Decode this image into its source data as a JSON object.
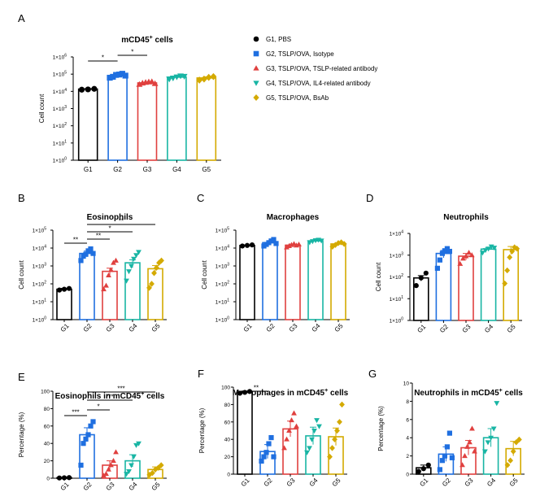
{
  "groups": [
    {
      "label": "G1",
      "legend": "G1, PBS",
      "color": "#000000",
      "marker": "circle"
    },
    {
      "label": "G2",
      "legend": "G2, TSLP/OVA, Isotype",
      "color": "#1f6fe0",
      "marker": "square"
    },
    {
      "label": "G3",
      "legend": "G3, TSLP/OVA, TSLP-related antibody",
      "color": "#e0403f",
      "marker": "triangle"
    },
    {
      "label": "G4",
      "legend": "G4, TSLP/OVA, IL4-related antibody",
      "color": "#18b5a4",
      "marker": "triangle-down"
    },
    {
      "label": "G5",
      "legend": "G5, TSLP/OVA, BsAb",
      "color": "#d4aa00",
      "marker": "diamond"
    }
  ],
  "chart_data": [
    {
      "id": "A",
      "panel_label": "A",
      "type": "bar",
      "scale": "log",
      "title": "mCD45",
      "title_sup": "+",
      "title_suffix": " cells",
      "ylabel": "Cell count",
      "ylim": [
        1,
        1000000
      ],
      "yticks": [
        [
          "1×10",
          "0"
        ],
        [
          "1×10",
          "1"
        ],
        [
          "1×10",
          "2"
        ],
        [
          "1×10",
          "3"
        ],
        [
          "1×10",
          "4"
        ],
        [
          "1×10",
          "5"
        ],
        [
          "1×10",
          "6"
        ]
      ],
      "categories": [
        "G1",
        "G2",
        "G3",
        "G4",
        "G5"
      ],
      "values": [
        13500,
        82000,
        31000,
        67000,
        60000
      ],
      "errors": [
        1000,
        9000,
        3500,
        9000,
        10000
      ],
      "points": [
        [
          12500,
          13000,
          14000
        ],
        [
          62000,
          70000,
          90000,
          95000,
          105000,
          82000
        ],
        [
          25000,
          30000,
          33000,
          35000,
          36000,
          28000
        ],
        [
          52000,
          60000,
          70000,
          80000,
          75000
        ],
        [
          45000,
          52000,
          65000,
          72000
        ]
      ],
      "significance": [
        {
          "from": 0,
          "to": 1,
          "label": "*"
        },
        {
          "from": 1,
          "to": 2,
          "label": "*"
        }
      ]
    },
    {
      "id": "B",
      "panel_label": "B",
      "type": "bar",
      "scale": "log",
      "title": "Eosinophils",
      "title_sup": "",
      "title_suffix": "",
      "ylabel": "Cell count",
      "ylim": [
        1,
        100000
      ],
      "yticks": [
        [
          "1×10",
          "0"
        ],
        [
          "1×10",
          "1"
        ],
        [
          "1×10",
          "2"
        ],
        [
          "1×10",
          "3"
        ],
        [
          "1×10",
          "4"
        ],
        [
          "1×10",
          "5"
        ]
      ],
      "categories": [
        "G1",
        "G2",
        "G3",
        "G4",
        "G5"
      ],
      "values": [
        50,
        5000,
        500,
        1500,
        700
      ],
      "errors": [
        6,
        1800,
        250,
        700,
        350
      ],
      "points": [
        [
          45,
          50,
          55
        ],
        [
          2000,
          3500,
          4500,
          7000,
          9000,
          5000
        ],
        [
          50,
          80,
          300,
          600,
          1500,
          2000
        ],
        [
          150,
          500,
          1000,
          2500,
          4000,
          6000
        ],
        [
          60,
          100,
          400,
          800,
          1500,
          2000
        ]
      ],
      "significance": [
        {
          "from": 0,
          "to": 1,
          "label": "**"
        },
        {
          "from": 1,
          "to": 2,
          "label": "**"
        },
        {
          "from": 1,
          "to": 3,
          "label": "*"
        },
        {
          "from": 1,
          "to": 4,
          "label": "**"
        }
      ]
    },
    {
      "id": "C",
      "panel_label": "C",
      "type": "bar",
      "scale": "log",
      "title": "Macrophages",
      "title_sup": "",
      "title_suffix": "",
      "ylabel": "Cell count",
      "ylim": [
        1,
        100000
      ],
      "yticks": [
        [
          "1×10",
          "0"
        ],
        [
          "1×10",
          "1"
        ],
        [
          "1×10",
          "2"
        ],
        [
          "1×10",
          "3"
        ],
        [
          "1×10",
          "4"
        ],
        [
          "1×10",
          "5"
        ]
      ],
      "categories": [
        "G1",
        "G2",
        "G3",
        "G4",
        "G5"
      ],
      "values": [
        14000,
        20000,
        14500,
        25000,
        17000
      ],
      "errors": [
        900,
        3500,
        2200,
        2500,
        2500
      ],
      "points": [
        [
          13000,
          14000,
          15000
        ],
        [
          13000,
          16000,
          20000,
          25000,
          30000,
          18000
        ],
        [
          11000,
          13000,
          15000,
          17000,
          14000,
          16000
        ],
        [
          21000,
          24000,
          27000,
          29000,
          26000
        ],
        [
          12000,
          15000,
          19000,
          21000,
          17000
        ]
      ],
      "significance": []
    },
    {
      "id": "D",
      "panel_label": "D",
      "type": "bar",
      "scale": "log",
      "title": "Neutrophils",
      "title_sup": "",
      "title_suffix": "",
      "ylabel": "Cell count",
      "ylim": [
        1,
        10000
      ],
      "yticks": [
        [
          "1×10",
          "0"
        ],
        [
          "1×10",
          "1"
        ],
        [
          "1×10",
          "2"
        ],
        [
          "1×10",
          "3"
        ],
        [
          "1×10",
          "4"
        ]
      ],
      "categories": [
        "G1",
        "G2",
        "G3",
        "G4",
        "G5"
      ],
      "values": [
        90,
        1200,
        900,
        1900,
        1800
      ],
      "errors": [
        25,
        450,
        300,
        350,
        700
      ],
      "points": [
        [
          40,
          90,
          150
        ],
        [
          250,
          600,
          1200,
          1600,
          2000,
          1500
        ],
        [
          400,
          700,
          900,
          1300,
          1000
        ],
        [
          1300,
          1700,
          2000,
          2500,
          2200
        ],
        [
          50,
          200,
          800,
          1500,
          2300,
          2000
        ]
      ],
      "significance": []
    },
    {
      "id": "E",
      "panel_label": "E",
      "type": "bar",
      "scale": "linear",
      "title": "Eosinophils in mCD45",
      "title_sup": "+",
      "title_suffix": " cells",
      "ylabel": "Percentage (%)",
      "ylim": [
        0,
        100
      ],
      "yticks": [
        [
          "0",
          ""
        ],
        [
          "20",
          ""
        ],
        [
          "40",
          ""
        ],
        [
          "60",
          ""
        ],
        [
          "80",
          ""
        ],
        [
          "100",
          ""
        ]
      ],
      "categories": [
        "G1",
        "G2",
        "G3",
        "G4",
        "G5"
      ],
      "values": [
        0.5,
        50,
        15,
        20,
        10
      ],
      "errors": [
        0.3,
        8,
        5,
        7,
        3
      ],
      "points": [
        [
          0.3,
          0.5,
          0.7
        ],
        [
          15,
          40,
          45,
          50,
          60,
          65
        ],
        [
          3,
          5,
          10,
          15,
          20,
          30
        ],
        [
          5,
          8,
          15,
          25,
          38,
          40
        ],
        [
          4,
          6,
          10,
          12,
          15
        ]
      ],
      "significance": [
        {
          "from": 0,
          "to": 1,
          "label": "***"
        },
        {
          "from": 1,
          "to": 2,
          "label": "*"
        },
        {
          "from": 1,
          "to": 3,
          "label": "***"
        },
        {
          "from": 1,
          "to": 4,
          "label": "***"
        }
      ]
    },
    {
      "id": "F",
      "panel_label": "F",
      "type": "bar",
      "scale": "linear",
      "title": "Macrophages in mCD45",
      "title_sup": "+",
      "title_suffix": " cells",
      "ylabel": "Percentage (%)",
      "ylim": [
        0,
        100
      ],
      "yticks": [
        [
          "0",
          ""
        ],
        [
          "20",
          ""
        ],
        [
          "40",
          ""
        ],
        [
          "60",
          ""
        ],
        [
          "80",
          ""
        ],
        [
          "100",
          ""
        ]
      ],
      "categories": [
        "G1",
        "G2",
        "G3",
        "G4",
        "G5"
      ],
      "values": [
        94,
        26,
        52,
        44,
        43
      ],
      "errors": [
        1.5,
        8,
        9,
        10,
        10
      ],
      "points": [
        [
          93,
          94,
          95
        ],
        [
          15,
          20,
          25,
          35,
          42,
          20
        ],
        [
          30,
          40,
          50,
          62,
          70,
          55
        ],
        [
          25,
          30,
          40,
          50,
          62,
          55
        ],
        [
          20,
          30,
          40,
          50,
          60,
          80
        ]
      ],
      "significance": [
        {
          "from": 0,
          "to": 1,
          "label": "**"
        }
      ]
    },
    {
      "id": "G",
      "panel_label": "G",
      "type": "bar",
      "scale": "linear",
      "title": "Neutrophils in mCD45",
      "title_sup": "+",
      "title_suffix": " cells",
      "ylabel": "Percentage (%)",
      "ylim": [
        0,
        10
      ],
      "yticks": [
        [
          "0",
          ""
        ],
        [
          "2",
          ""
        ],
        [
          "4",
          ""
        ],
        [
          "6",
          ""
        ],
        [
          "8",
          ""
        ],
        [
          "10",
          ""
        ]
      ],
      "categories": [
        "G1",
        "G2",
        "G3",
        "G4",
        "G5"
      ],
      "values": [
        0.7,
        2.2,
        2.9,
        4.0,
        2.8
      ],
      "errors": [
        0.3,
        0.8,
        0.8,
        1.0,
        0.8
      ],
      "points": [
        [
          0.3,
          0.6,
          1.0
        ],
        [
          0.5,
          1.5,
          2.0,
          3.0,
          4.5,
          1.8
        ],
        [
          1.0,
          2.0,
          3.0,
          3.5,
          5.0,
          2.5
        ],
        [
          2.5,
          3.5,
          4.0,
          5.0,
          7.8
        ],
        [
          1.0,
          1.5,
          2.5,
          3.5,
          3.8
        ]
      ],
      "significance": []
    }
  ]
}
